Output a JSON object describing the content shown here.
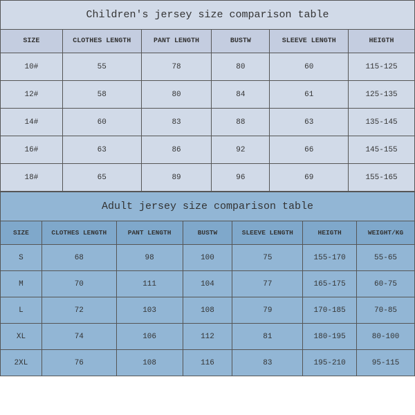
{
  "children_table": {
    "title": "Children's jersey size comparison table",
    "title_bg": "#d1dae8",
    "header_bg": "#c4cde0",
    "row_bg": "#d1dae8",
    "columns": [
      "SIZE",
      "CLOTHES LENGTH",
      "PANT LENGTH",
      "BUSTW",
      "SLEEVE LENGTH",
      "HEIGTH"
    ],
    "col_widths_pct": [
      15,
      19,
      17,
      14,
      19,
      16
    ],
    "rows": [
      [
        "10#",
        "55",
        "78",
        "80",
        "60",
        "115-125"
      ],
      [
        "12#",
        "58",
        "80",
        "84",
        "61",
        "125-135"
      ],
      [
        "14#",
        "60",
        "83",
        "88",
        "63",
        "135-145"
      ],
      [
        "16#",
        "63",
        "86",
        "92",
        "66",
        "145-155"
      ],
      [
        "18#",
        "65",
        "89",
        "96",
        "69",
        "155-165"
      ]
    ]
  },
  "adult_table": {
    "title": "Adult jersey size comparison table",
    "title_bg": "#92b6d5",
    "header_bg": "#7fa8cb",
    "row_bg": "#92b6d5",
    "columns": [
      "SIZE",
      "CLOTHES LENGTH",
      "PANT LENGTH",
      "BUSTW",
      "SLEEVE LENGTH",
      "HEIGTH",
      "WEIGHT/KG"
    ],
    "col_widths_pct": [
      10,
      18,
      16,
      12,
      17,
      13,
      14
    ],
    "rows": [
      [
        "S",
        "68",
        "98",
        "100",
        "75",
        "155-170",
        "55-65"
      ],
      [
        "M",
        "70",
        "111",
        "104",
        "77",
        "165-175",
        "60-75"
      ],
      [
        "L",
        "72",
        "103",
        "108",
        "79",
        "170-185",
        "70-85"
      ],
      [
        "XL",
        "74",
        "106",
        "112",
        "81",
        "180-195",
        "80-100"
      ],
      [
        "2XL",
        "76",
        "108",
        "116",
        "83",
        "195-210",
        "95-115"
      ]
    ]
  },
  "border_color": "#555555",
  "text_color": "#333333"
}
